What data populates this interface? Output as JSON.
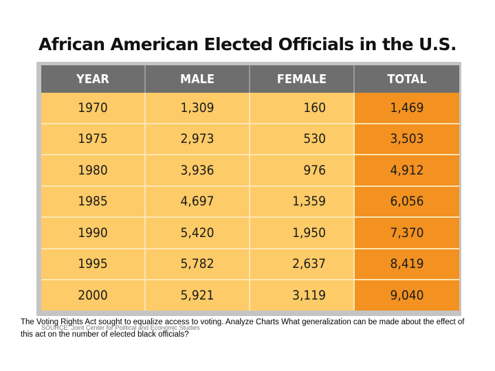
{
  "chart_data": {
    "type": "table",
    "title": "African American Elected Officials in the U.S.",
    "columns": [
      "YEAR",
      "MALE",
      "FEMALE",
      "TOTAL"
    ],
    "rows": [
      [
        "1970",
        "1,309",
        "160",
        "1,469"
      ],
      [
        "1975",
        "2,973",
        "530",
        "3,503"
      ],
      [
        "1980",
        "3,936",
        "976",
        "4,912"
      ],
      [
        "1985",
        "4,697",
        "1,359",
        "6,056"
      ],
      [
        "1990",
        "5,420",
        "1,950",
        "7,370"
      ],
      [
        "1995",
        "5,782",
        "2,637",
        "8,419"
      ],
      [
        "2000",
        "5,921",
        "3,119",
        "9,040"
      ]
    ],
    "source": "SOURCE: Joint Center for Political and Economic Studies"
  },
  "caption": "The Voting Rights Act sought to equalize access to voting. Analyze Charts What generalization can be made about the effect of this act on the number of elected black officials?",
  "colors": {
    "header_bg": "#6e6e6e",
    "cell_bg": "#fdcb67",
    "total_bg": "#f39121",
    "frame": "#c4c4c4"
  }
}
